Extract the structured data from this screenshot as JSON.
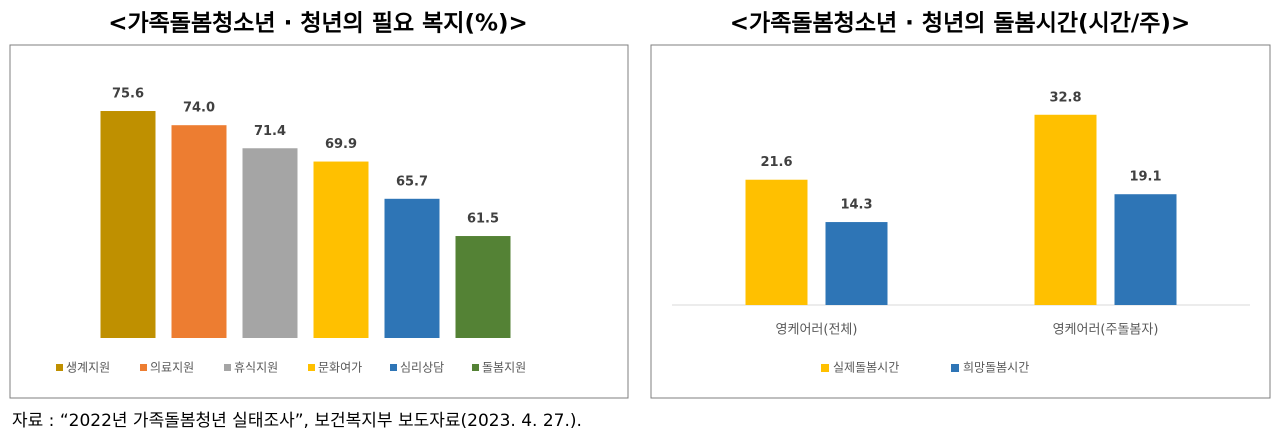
{
  "chart_data": [
    {
      "type": "bar",
      "title": "<가족돌봄청소년 · 청년의 필요 복지(%)>",
      "categories": [
        "생계지원",
        "의료지원",
        "휴식지원",
        "문화여가",
        "심리상담",
        "돌봄지원"
      ],
      "values": [
        75.6,
        74,
        71.4,
        69.9,
        65.7,
        61.5
      ],
      "value_labels": [
        "75.6",
        "74.0",
        "71.4",
        "69.9",
        "65.7",
        "61.5"
      ],
      "colors": [
        "#bf9000",
        "#ed7d31",
        "#a5a5a5",
        "#ffc000",
        "#2e75b6",
        "#548235"
      ],
      "ylim": [
        50,
        80
      ],
      "legend": "bottom"
    },
    {
      "type": "bar",
      "title": "<가족돌봄청소년 · 청년의 돌봄시간(시간/주)>",
      "categories": [
        "영케어러(전체)",
        "영케어러(주돌봄자)"
      ],
      "series": [
        {
          "name": "실제돌봄시간",
          "color": "#ffc000",
          "values": [
            21.6,
            32.8
          ]
        },
        {
          "name": "희망돌봄시간",
          "color": "#2e75b6",
          "values": [
            14.3,
            19.1
          ]
        }
      ],
      "ylim": [
        0,
        40
      ],
      "legend": "bottom"
    }
  ],
  "source": "자료 : “2022년 가족돌봄청년 실태조사”, 보건복지부 보도자료(2023. 4. 27.)."
}
